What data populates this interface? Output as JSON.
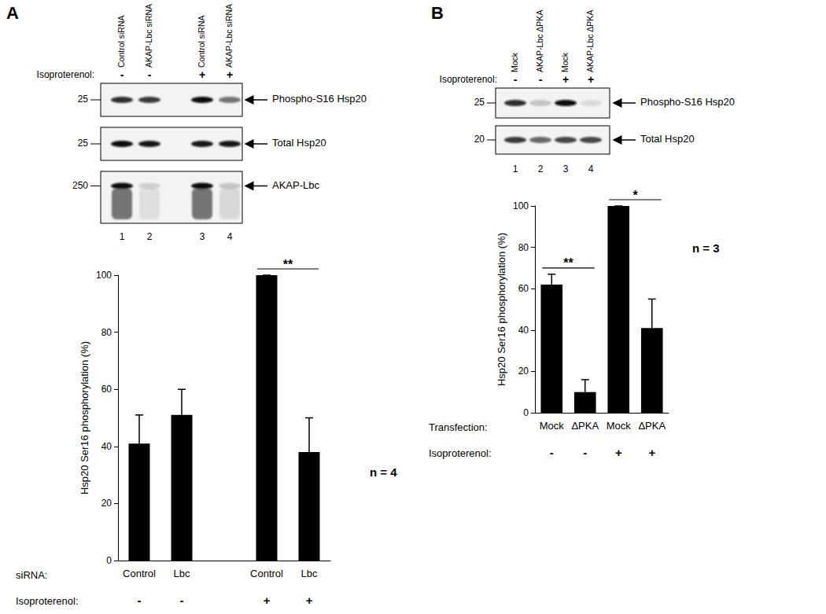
{
  "blots": [
    {
      "panel": "A",
      "lanes": [
        "Control siRNA",
        "AKAP-Lbc siRNA",
        "Control siRNA",
        "AKAP-Lbc siRNA"
      ],
      "lane_numbers": [
        1,
        2,
        3,
        4
      ],
      "treatment": {
        "label": "Isoproterenol:",
        "values": [
          "-",
          "-",
          "+",
          "+"
        ]
      },
      "rows": [
        {
          "label": "Phospho-S16 Hsp20",
          "marker": 25,
          "intensity": [
            0.85,
            0.8,
            1,
            0.55
          ]
        },
        {
          "label": "Total Hsp20",
          "marker": 25,
          "intensity": [
            1,
            0.95,
            0.95,
            0.95
          ]
        },
        {
          "label": "AKAP-Lbc",
          "marker": 250,
          "intensity": [
            1,
            0.15,
            1,
            0.2
          ]
        }
      ]
    },
    {
      "panel": "B",
      "lanes": [
        "Mock",
        "AKAP-Lbc ΔPKA",
        "Mock",
        "AKAP-Lbc ΔPKA"
      ],
      "lane_numbers": [
        1,
        2,
        3,
        4
      ],
      "treatment": {
        "label": "Isoproterenol:",
        "values": [
          "-",
          "-",
          "+",
          "+"
        ]
      },
      "rows": [
        {
          "label": "Phospho-S16 Hsp20",
          "marker": 25,
          "intensity": [
            0.85,
            0.2,
            1,
            0.1
          ]
        },
        {
          "label": "Total Hsp20",
          "marker": 20,
          "intensity": [
            0.8,
            0.6,
            0.75,
            0.75
          ]
        }
      ]
    }
  ],
  "chart_data": [
    {
      "type": "bar",
      "categories": [
        "Control",
        "Lbc",
        null,
        "Control",
        "Lbc"
      ],
      "values": [
        41,
        51,
        null,
        100,
        38
      ],
      "errors": [
        10,
        9,
        null,
        0,
        12
      ],
      "color": "#000000",
      "xlabel": "siRNA:",
      "treatment": {
        "label": "Isoproterenol:",
        "values": [
          "-",
          "-",
          null,
          "+",
          "+"
        ]
      },
      "ylabel": "Hsp20 Ser16 phosphorylation (%)",
      "ylim": [
        0,
        100
      ],
      "yticks": [
        0,
        20,
        40,
        60,
        80,
        100
      ],
      "grid": false,
      "significance": [
        {
          "label": "**",
          "bars": [
            3,
            4
          ]
        }
      ],
      "annotations": [
        "n = 4"
      ]
    },
    {
      "type": "bar",
      "categories": [
        "Mock",
        "ΔPKA",
        "Mock",
        "ΔPKA"
      ],
      "values": [
        62,
        10,
        100,
        41
      ],
      "errors": [
        5,
        6,
        0,
        14
      ],
      "color": "#000000",
      "xlabel": "Transfection:",
      "treatment": {
        "label": "Isoproterenol:",
        "values": [
          "-",
          "-",
          "+",
          "+"
        ]
      },
      "ylabel": "Hsp20 Ser16 phosphorylation (%)",
      "ylim": [
        0,
        100
      ],
      "yticks": [
        0,
        20,
        40,
        60,
        80,
        100
      ],
      "grid": false,
      "significance": [
        {
          "label": "**",
          "bars": [
            0,
            1
          ]
        },
        {
          "label": "*",
          "bars": [
            2,
            3
          ]
        }
      ],
      "annotations": [
        "n = 3"
      ]
    }
  ]
}
